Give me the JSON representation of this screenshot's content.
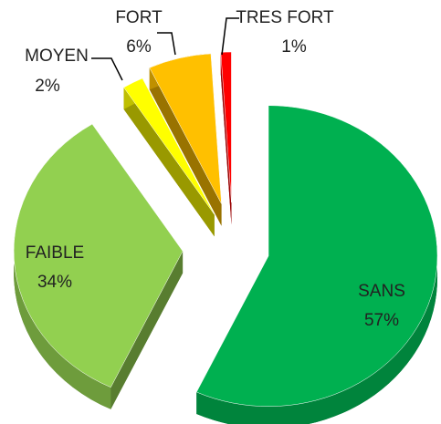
{
  "chart_data": {
    "type": "pie",
    "categories": [
      "SANS",
      "FAIBLE",
      "MOYEN",
      "FORT",
      "TRES FORT"
    ],
    "values": [
      57,
      34,
      2,
      6,
      1
    ],
    "value_labels": [
      "57%",
      "34%",
      "2%",
      "6%",
      "1%"
    ],
    "colors": [
      "#00b050",
      "#92d050",
      "#ffff00",
      "#ffc000",
      "#ff0000"
    ]
  }
}
